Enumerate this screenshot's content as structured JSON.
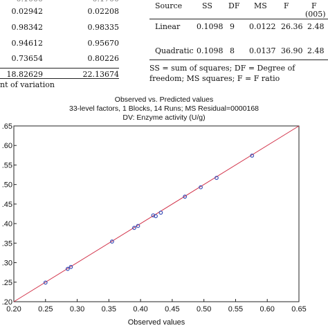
{
  "regression_stats": {
    "rows": [
      {
        "linear": "0.02942",
        "quadratic": "0.02208"
      },
      {
        "linear": "0.98342",
        "quadratic": "0.98335"
      },
      {
        "linear": "0.94612",
        "quadratic": "0.95670"
      },
      {
        "linear": "0.73654",
        "quadratic": "0.80226"
      },
      {
        "linear": "18.82629",
        "quadratic": "22.13674"
      }
    ],
    "cv_note": "nt of variation"
  },
  "anova": {
    "headers": [
      "Source",
      "SS",
      "DF",
      "MS",
      "F",
      "F",
      "(005)"
    ],
    "rows": [
      {
        "source": "Linear",
        "ss": "0.1098",
        "df": "9",
        "ms": "0.0122",
        "f": "26.36",
        "fcrit": "2.48"
      },
      {
        "source": "Quadratic",
        "ss": "0.1098",
        "df": "8",
        "ms": "0.0137",
        "f": "36.90",
        "fcrit": "2.48"
      }
    ],
    "footnote": "SS = sum of squares; DF = Degree of freedom; MS squares; F = F ratio"
  },
  "chart_data": {
    "type": "scatter",
    "title": "Observed vs. Predicted values",
    "subtitle": "33-level factors, 1 Blocks, 14 Runs; MS Residual=0000168",
    "subtitle2": "DV: Enzyme activity (U/g)",
    "xlabel": "Observed values",
    "ylabel": "",
    "xlim": [
      0.2,
      0.65
    ],
    "ylim": [
      0.2,
      0.65
    ],
    "x_ticks": [
      "0.20",
      "0.25",
      "0.30",
      "0.35",
      "0.40",
      "0.45",
      "0.50",
      "0.55",
      "0.60",
      "0.65"
    ],
    "y_ticks": [
      ".20",
      ".25",
      ".30",
      ".35",
      ".40",
      ".45",
      ".50",
      ".55",
      ".60",
      ".65"
    ],
    "points": [
      {
        "x": 0.25,
        "y": 0.249
      },
      {
        "x": 0.285,
        "y": 0.284
      },
      {
        "x": 0.29,
        "y": 0.289
      },
      {
        "x": 0.355,
        "y": 0.354
      },
      {
        "x": 0.39,
        "y": 0.389
      },
      {
        "x": 0.396,
        "y": 0.394
      },
      {
        "x": 0.42,
        "y": 0.421
      },
      {
        "x": 0.424,
        "y": 0.419
      },
      {
        "x": 0.432,
        "y": 0.428
      },
      {
        "x": 0.47,
        "y": 0.469
      },
      {
        "x": 0.495,
        "y": 0.493
      },
      {
        "x": 0.52,
        "y": 0.517
      },
      {
        "x": 0.576,
        "y": 0.574
      }
    ],
    "fit_line": {
      "x": [
        0.2,
        0.65
      ],
      "y": [
        0.2,
        0.65
      ]
    },
    "grid": false,
    "colors": {
      "points": "#3a4fb8",
      "fit_line": "#d2334a"
    }
  }
}
